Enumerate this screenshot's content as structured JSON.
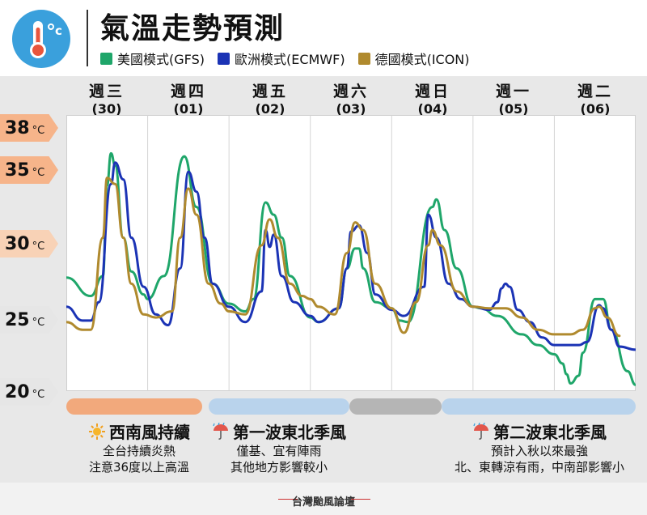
{
  "header": {
    "title": "氣溫走勢預測",
    "icon": "thermometer-icon",
    "legend": [
      {
        "label": "美國模式(GFS)",
        "color": "#1fa66a"
      },
      {
        "label": "歐洲模式(ECMWF)",
        "color": "#1b33b5"
      },
      {
        "label": "德國模式(ICON)",
        "color": "#b08a2e"
      }
    ]
  },
  "days": [
    {
      "name": "週三",
      "date": "(30)"
    },
    {
      "name": "週四",
      "date": "(01)"
    },
    {
      "name": "週五",
      "date": "(02)"
    },
    {
      "name": "週六",
      "date": "(03)"
    },
    {
      "name": "週日",
      "date": "(04)"
    },
    {
      "name": "週一",
      "date": "(05)"
    },
    {
      "name": "週二",
      "date": "(06)"
    }
  ],
  "y_labels": [
    {
      "value": "38",
      "unit": "°C",
      "color": "#f6b48a"
    },
    {
      "value": "35",
      "unit": "°C",
      "color": "#f6b48a"
    },
    {
      "value": "30",
      "unit": "°C",
      "color": "#f8d2b6"
    },
    {
      "value": "25",
      "unit": "°C",
      "color": "#e6e6e6"
    },
    {
      "value": "20",
      "unit": "°C",
      "color": "#e6e6e6"
    }
  ],
  "phases": [
    {
      "color": "#f2a97c"
    },
    {
      "color": "#b9d3ec"
    },
    {
      "color": "#b5b5b5"
    },
    {
      "color": "#b9d3ec"
    }
  ],
  "annotations": [
    {
      "icon": "sun-icon",
      "title": "西南風持續",
      "lines": [
        "全台持續炎熱",
        "注意36度以上高溫"
      ]
    },
    {
      "icon": "umbrella-rain-icon",
      "title": "第一波東北季風",
      "lines": [
        "僅基、宜有陣雨",
        "其他地方影響較小"
      ]
    },
    {
      "icon": "umbrella-rain-icon",
      "title": "第二波東北季風",
      "lines": [
        "預計入秋以來最強",
        "北、東轉涼有雨，中南部影響小"
      ]
    }
  ],
  "footer": {
    "brand": "台灣颱風論壇"
  },
  "chart_data": {
    "type": "line",
    "x_unit": "day (0 = 週三 00:00)",
    "xlim": [
      0,
      7
    ],
    "ylim": [
      20,
      38
    ],
    "ylabel": "",
    "grid": true,
    "series": [
      {
        "name": "美國模式(GFS)",
        "color": "#1fa66a",
        "points": [
          [
            0,
            27.4
          ],
          [
            0.3,
            26.2
          ],
          [
            0.45,
            27.5
          ],
          [
            0.5,
            33.4
          ],
          [
            0.55,
            35.5
          ],
          [
            0.6,
            34.7
          ],
          [
            0.7,
            30
          ],
          [
            0.8,
            27.8
          ],
          [
            0.95,
            26.3
          ],
          [
            1.0,
            26.0
          ],
          [
            1.2,
            27.5
          ],
          [
            1.45,
            35.3
          ],
          [
            1.6,
            32
          ],
          [
            1.8,
            27
          ],
          [
            2.0,
            25.7
          ],
          [
            2.2,
            25.2
          ],
          [
            2.3,
            26
          ],
          [
            2.45,
            32.3
          ],
          [
            2.55,
            31.5
          ],
          [
            2.65,
            30
          ],
          [
            2.75,
            27.5
          ],
          [
            3.0,
            24.8
          ],
          [
            3.1,
            24.5
          ],
          [
            3.35,
            25.4
          ],
          [
            3.45,
            28
          ],
          [
            3.55,
            29.3
          ],
          [
            3.6,
            29.3
          ],
          [
            3.65,
            28
          ],
          [
            3.8,
            25.8
          ],
          [
            4.0,
            25.4
          ],
          [
            4.1,
            24.6
          ],
          [
            4.2,
            24.5
          ],
          [
            4.5,
            32
          ],
          [
            4.55,
            32.5
          ],
          [
            4.65,
            30.5
          ],
          [
            4.8,
            28
          ],
          [
            5.0,
            25.5
          ],
          [
            5.1,
            25.4
          ],
          [
            5.3,
            24.9
          ],
          [
            5.6,
            23.7
          ],
          [
            5.8,
            23.0
          ],
          [
            6.0,
            22.4
          ],
          [
            6.1,
            21.8
          ],
          [
            6.15,
            21.1
          ],
          [
            6.2,
            20.5
          ],
          [
            6.3,
            21
          ],
          [
            6.35,
            22.5
          ],
          [
            6.5,
            26
          ],
          [
            6.6,
            26
          ],
          [
            6.7,
            24
          ],
          [
            6.9,
            21.3
          ],
          [
            7.0,
            20.4
          ]
        ]
      },
      {
        "name": "歐洲模式(ECMWF)",
        "color": "#1b33b5",
        "points": [
          [
            0,
            25.5
          ],
          [
            0.2,
            24.6
          ],
          [
            0.3,
            24.6
          ],
          [
            0.4,
            25.8
          ],
          [
            0.55,
            33.5
          ],
          [
            0.6,
            34.9
          ],
          [
            0.7,
            33.8
          ],
          [
            0.8,
            30
          ],
          [
            0.95,
            26.8
          ],
          [
            1.1,
            25
          ],
          [
            1.25,
            24.3
          ],
          [
            1.4,
            28
          ],
          [
            1.5,
            34.3
          ],
          [
            1.6,
            33
          ],
          [
            1.7,
            30
          ],
          [
            1.8,
            27
          ],
          [
            2.0,
            25.5
          ],
          [
            2.2,
            24.5
          ],
          [
            2.4,
            26.5
          ],
          [
            2.45,
            30.5
          ],
          [
            2.5,
            29.4
          ],
          [
            2.55,
            30.2
          ],
          [
            2.65,
            27.5
          ],
          [
            2.8,
            25.8
          ],
          [
            3.0,
            24.9
          ],
          [
            3.1,
            24.5
          ],
          [
            3.35,
            25.4
          ],
          [
            3.45,
            28
          ],
          [
            3.5,
            30.4
          ],
          [
            3.6,
            30.8
          ],
          [
            3.7,
            29
          ],
          [
            3.8,
            26.3
          ],
          [
            4.0,
            25.3
          ],
          [
            4.15,
            24.9
          ],
          [
            4.4,
            26.8
          ],
          [
            4.45,
            31.5
          ],
          [
            4.55,
            30
          ],
          [
            4.7,
            27
          ],
          [
            4.85,
            26
          ],
          [
            5.0,
            25.5
          ],
          [
            5.2,
            25.3
          ],
          [
            5.3,
            25.8
          ],
          [
            5.35,
            26.7
          ],
          [
            5.4,
            27.0
          ],
          [
            5.45,
            26.8
          ],
          [
            5.55,
            25.3
          ],
          [
            5.7,
            24.5
          ],
          [
            5.85,
            23.5
          ],
          [
            6.0,
            23.0
          ],
          [
            6.3,
            23.0
          ],
          [
            6.4,
            23.2
          ],
          [
            6.55,
            25.6
          ],
          [
            6.6,
            25.4
          ],
          [
            6.7,
            24
          ],
          [
            6.8,
            22.9
          ],
          [
            7.0,
            22.7
          ]
        ]
      },
      {
        "name": "德國模式(ICON)",
        "color": "#b08a2e",
        "points": [
          [
            0,
            24.5
          ],
          [
            0.2,
            24.0
          ],
          [
            0.3,
            24.0
          ],
          [
            0.45,
            30
          ],
          [
            0.5,
            33.9
          ],
          [
            0.6,
            33.5
          ],
          [
            0.7,
            30
          ],
          [
            0.8,
            27
          ],
          [
            0.95,
            25
          ],
          [
            1.1,
            24.8
          ],
          [
            1.3,
            25.2
          ],
          [
            1.4,
            30
          ],
          [
            1.5,
            33.2
          ],
          [
            1.6,
            31.5
          ],
          [
            1.75,
            27
          ],
          [
            1.9,
            25.7
          ],
          [
            2.0,
            25.2
          ],
          [
            2.2,
            25
          ],
          [
            2.4,
            29.5
          ],
          [
            2.5,
            31.2
          ],
          [
            2.6,
            30
          ],
          [
            2.75,
            27
          ],
          [
            2.9,
            26.2
          ],
          [
            3.0,
            26.0
          ],
          [
            3.1,
            25.5
          ],
          [
            3.3,
            25
          ],
          [
            3.45,
            29
          ],
          [
            3.55,
            31.0
          ],
          [
            3.65,
            30.5
          ],
          [
            3.8,
            27
          ],
          [
            4.0,
            25.4
          ],
          [
            4.15,
            23.8
          ],
          [
            4.3,
            25.8
          ],
          [
            4.45,
            29.5
          ],
          [
            4.5,
            30.5
          ],
          [
            4.6,
            29.5
          ],
          [
            4.8,
            26.5
          ],
          [
            5.0,
            25.5
          ],
          [
            5.2,
            25.4
          ],
          [
            5.4,
            25.4
          ],
          [
            5.6,
            24.8
          ],
          [
            5.8,
            24.0
          ],
          [
            6.0,
            23.7
          ],
          [
            6.2,
            23.7
          ],
          [
            6.35,
            24
          ],
          [
            6.5,
            25.4
          ],
          [
            6.55,
            25.5
          ],
          [
            6.65,
            24.8
          ],
          [
            6.8,
            23.6
          ]
        ]
      }
    ]
  }
}
